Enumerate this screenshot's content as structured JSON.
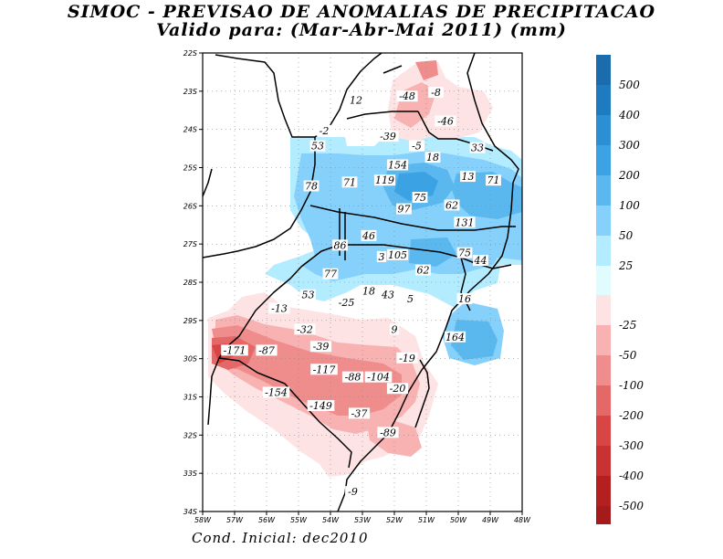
{
  "title": "SIMOC - PREVISAO DE ANOMALIAS DE PRECIPITACAO",
  "subtitle": "Valido para: (Mar-Abr-Mai 2011) (mm)",
  "footer": "Cond. Inicial: dec2010",
  "map": {
    "lat_labels": [
      "22S",
      "23S",
      "24S",
      "25S",
      "26S",
      "27S",
      "28S",
      "29S",
      "30S",
      "31S",
      "32S",
      "33S",
      "34S"
    ],
    "lon_labels": [
      "58W",
      "57W",
      "56W",
      "55W",
      "54W",
      "53W",
      "52W",
      "51W",
      "50W",
      "49W",
      "48W"
    ],
    "value_labels": [
      {
        "text": "12",
        "lon": -53.2,
        "lat": -23.3
      },
      {
        "text": "-48",
        "lon": -51.6,
        "lat": -23.2
      },
      {
        "text": "-8",
        "lon": -50.7,
        "lat": -23.1
      },
      {
        "text": "-46",
        "lon": -50.4,
        "lat": -23.85
      },
      {
        "text": "-2",
        "lon": -54.2,
        "lat": -24.1
      },
      {
        "text": "-39",
        "lon": -52.2,
        "lat": -24.25
      },
      {
        "text": "53",
        "lon": -54.4,
        "lat": -24.5
      },
      {
        "text": "-5",
        "lon": -51.3,
        "lat": -24.5
      },
      {
        "text": "33",
        "lon": -49.4,
        "lat": -24.55
      },
      {
        "text": "18",
        "lon": -50.8,
        "lat": -24.8
      },
      {
        "text": "154",
        "lon": -51.9,
        "lat": -25.0
      },
      {
        "text": "13",
        "lon": -49.7,
        "lat": -25.3
      },
      {
        "text": "71",
        "lon": -48.9,
        "lat": -25.4
      },
      {
        "text": "119",
        "lon": -52.3,
        "lat": -25.4
      },
      {
        "text": "71",
        "lon": -53.4,
        "lat": -25.45
      },
      {
        "text": "78",
        "lon": -54.6,
        "lat": -25.55
      },
      {
        "text": "75",
        "lon": -51.2,
        "lat": -25.85
      },
      {
        "text": "62",
        "lon": -50.2,
        "lat": -26.05
      },
      {
        "text": "97",
        "lon": -51.7,
        "lat": -26.15
      },
      {
        "text": "131",
        "lon": -49.8,
        "lat": -26.5
      },
      {
        "text": "46",
        "lon": -52.8,
        "lat": -26.85
      },
      {
        "text": "86",
        "lon": -53.7,
        "lat": -27.1
      },
      {
        "text": "75",
        "lon": -49.8,
        "lat": -27.3
      },
      {
        "text": "105",
        "lon": -51.9,
        "lat": -27.35
      },
      {
        "text": "3",
        "lon": -52.4,
        "lat": -27.4
      },
      {
        "text": "44",
        "lon": -49.3,
        "lat": -27.5
      },
      {
        "text": "62",
        "lon": -51.1,
        "lat": -27.75
      },
      {
        "text": "77",
        "lon": -54.0,
        "lat": -27.85
      },
      {
        "text": "18",
        "lon": -52.8,
        "lat": -28.3
      },
      {
        "text": "53",
        "lon": -54.7,
        "lat": -28.4
      },
      {
        "text": "43",
        "lon": -52.2,
        "lat": -28.4
      },
      {
        "text": "5",
        "lon": -51.5,
        "lat": -28.5
      },
      {
        "text": "16",
        "lon": -49.8,
        "lat": -28.5
      },
      {
        "text": "-25",
        "lon": -53.5,
        "lat": -28.6
      },
      {
        "text": "-13",
        "lon": -55.6,
        "lat": -28.75
      },
      {
        "text": "-32",
        "lon": -54.8,
        "lat": -29.3
      },
      {
        "text": "9",
        "lon": -52.0,
        "lat": -29.3
      },
      {
        "text": "164",
        "lon": -50.1,
        "lat": -29.5
      },
      {
        "text": "-39",
        "lon": -54.3,
        "lat": -29.75
      },
      {
        "text": "-171",
        "lon": -57.0,
        "lat": -29.85
      },
      {
        "text": "-87",
        "lon": -56.0,
        "lat": -29.85
      },
      {
        "text": "-19",
        "lon": -51.6,
        "lat": -30.05
      },
      {
        "text": "-117",
        "lon": -54.2,
        "lat": -30.35
      },
      {
        "text": "-88",
        "lon": -53.3,
        "lat": -30.55
      },
      {
        "text": "-104",
        "lon": -52.5,
        "lat": -30.55
      },
      {
        "text": "-20",
        "lon": -51.9,
        "lat": -30.85
      },
      {
        "text": "-154",
        "lon": -55.7,
        "lat": -30.95
      },
      {
        "text": "-149",
        "lon": -54.3,
        "lat": -31.3
      },
      {
        "text": "-37",
        "lon": -53.1,
        "lat": -31.5
      },
      {
        "text": "-89",
        "lon": -52.2,
        "lat": -32.0
      },
      {
        "text": "-9",
        "lon": -53.3,
        "lat": -33.55
      }
    ]
  },
  "colorbar": {
    "positive": [
      {
        "label": "500",
        "color": "#1e7bc0"
      },
      {
        "label": "400",
        "color": "#2b8fd4"
      },
      {
        "label": "300",
        "color": "#3ba3e4"
      },
      {
        "label": "200",
        "color": "#5ab8ef"
      },
      {
        "label": "100",
        "color": "#85d1fb"
      },
      {
        "label": "50",
        "color": "#b3ebff"
      },
      {
        "label": "25",
        "color": "#e1fcff"
      }
    ],
    "negative": [
      {
        "label": "-25",
        "color": "#fde3e3"
      },
      {
        "label": "-50",
        "color": "#f8b2b2"
      },
      {
        "label": "-100",
        "color": "#ef8d8d"
      },
      {
        "label": "-200",
        "color": "#e46868"
      },
      {
        "label": "-300",
        "color": "#d84545"
      },
      {
        "label": "-400",
        "color": "#c83232"
      },
      {
        "label": "-500",
        "color": "#b42020"
      }
    ],
    "top_color": "#1b6cad",
    "bottom_color": "#a51b1b"
  }
}
